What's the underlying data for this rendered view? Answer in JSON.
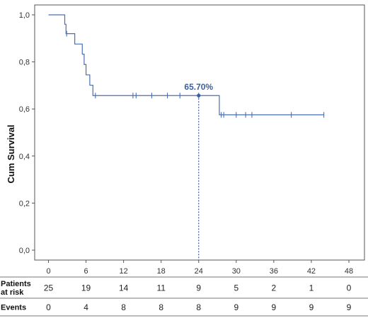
{
  "chart_data": {
    "type": "line",
    "title": "",
    "xlabel": "",
    "ylabel": "Cum Survival",
    "xlim": [
      0,
      48
    ],
    "ylim": [
      0,
      1
    ],
    "x_ticks": [
      "0",
      "6",
      "12",
      "18",
      "24",
      "30",
      "36",
      "42",
      "48"
    ],
    "y_ticks": [
      "0,0",
      "0,2",
      "0,4",
      "0,6",
      "0,8",
      "1,0"
    ],
    "grid": false,
    "line_color": "#4a6fb0",
    "annotation_color": "#3d5f9e",
    "series": [
      {
        "steps": [
          {
            "x": 0,
            "y": 1.0
          },
          {
            "x": 2.6,
            "y": 0.96
          },
          {
            "x": 2.8,
            "y": 0.92
          },
          {
            "x": 4.2,
            "y": 0.876
          },
          {
            "x": 5.4,
            "y": 0.833
          },
          {
            "x": 5.7,
            "y": 0.789
          },
          {
            "x": 6.0,
            "y": 0.745
          },
          {
            "x": 6.6,
            "y": 0.701
          },
          {
            "x": 7.1,
            "y": 0.657
          },
          {
            "x": 27.3,
            "y": 0.575
          }
        ],
        "end_x": 44.0,
        "censored": [
          {
            "x": 2.9,
            "y": 0.92
          },
          {
            "x": 7.5,
            "y": 0.657
          },
          {
            "x": 13.5,
            "y": 0.657
          },
          {
            "x": 14.0,
            "y": 0.657
          },
          {
            "x": 16.5,
            "y": 0.657
          },
          {
            "x": 19.0,
            "y": 0.657
          },
          {
            "x": 21.0,
            "y": 0.657
          },
          {
            "x": 24.0,
            "y": 0.657
          },
          {
            "x": 27.6,
            "y": 0.575
          },
          {
            "x": 28.0,
            "y": 0.575
          },
          {
            "x": 30.0,
            "y": 0.575
          },
          {
            "x": 31.5,
            "y": 0.575
          },
          {
            "x": 32.5,
            "y": 0.575
          },
          {
            "x": 38.8,
            "y": 0.575
          },
          {
            "x": 44.0,
            "y": 0.575
          }
        ]
      }
    ],
    "annotations": [
      {
        "text": "65.70%",
        "x": 24,
        "y": 0.657
      }
    ]
  },
  "risk_table": {
    "rows": [
      {
        "label_lines": [
          "Patients",
          "at risk"
        ],
        "values": [
          "25",
          "19",
          "14",
          "11",
          "9",
          "5",
          "2",
          "1",
          "0"
        ]
      },
      {
        "label_lines": [
          "Events"
        ],
        "values": [
          "0",
          "4",
          "8",
          "8",
          "8",
          "9",
          "9",
          "9",
          "9"
        ]
      }
    ]
  }
}
